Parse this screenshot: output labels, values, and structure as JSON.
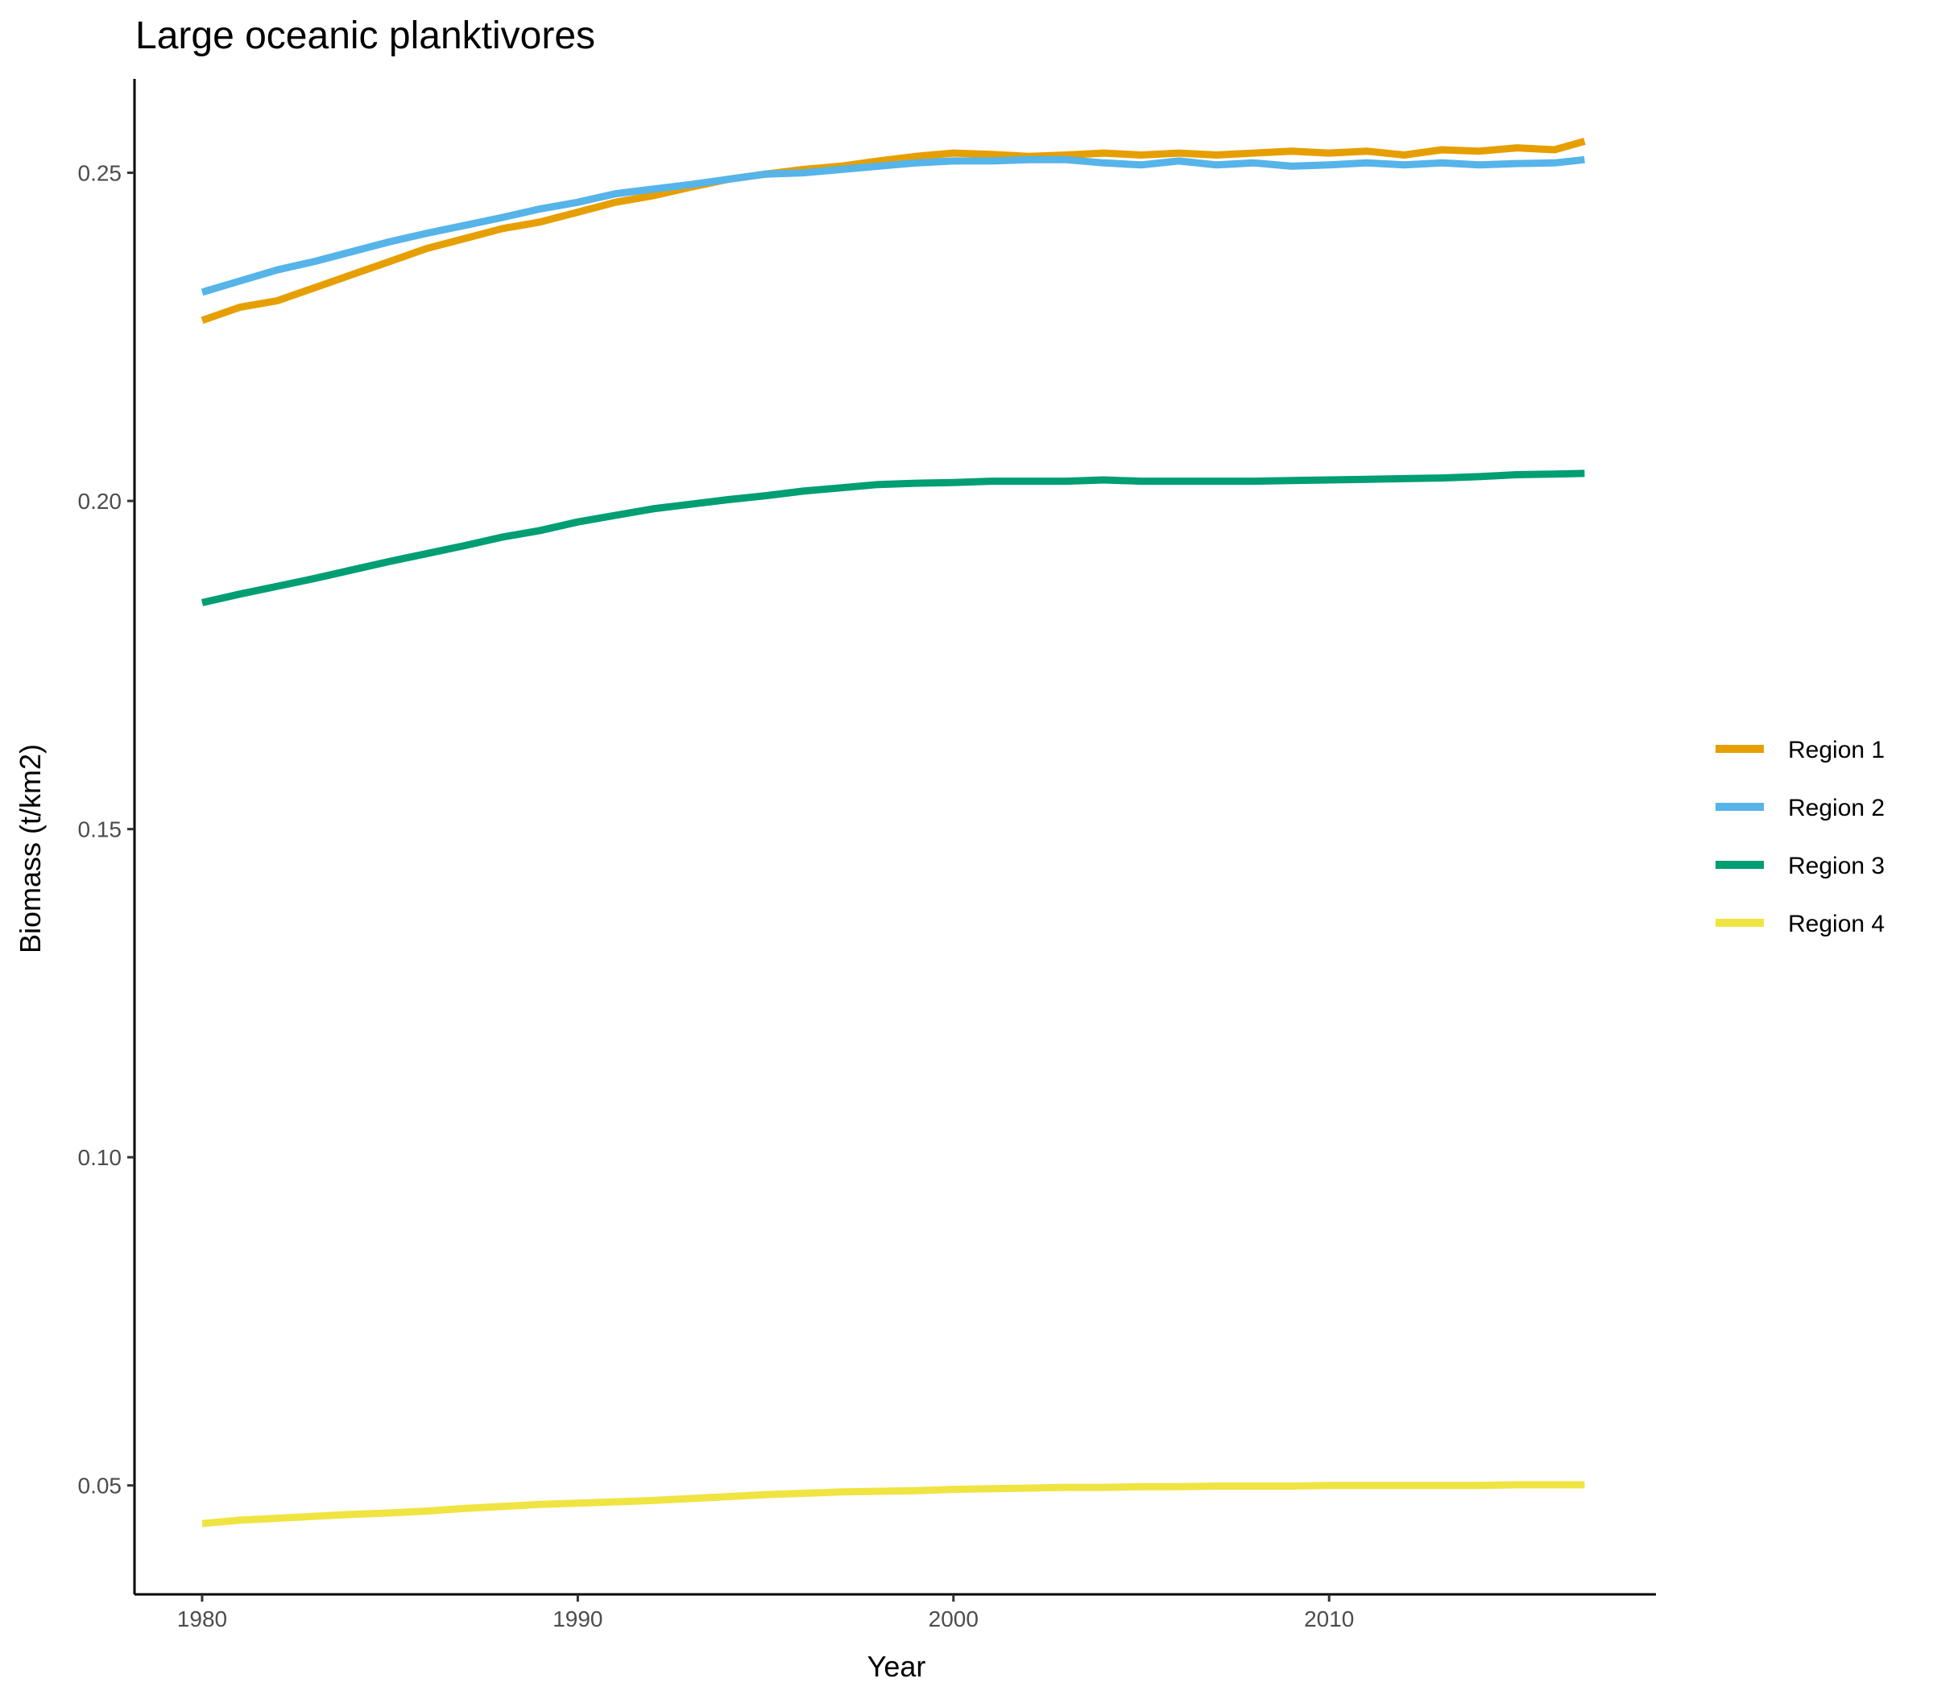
{
  "chart_data": {
    "type": "line",
    "title": "Large oceanic planktivores",
    "xlabel": "Year",
    "ylabel": "Biomass (t/km2)",
    "xlim": [
      1978.2,
      2018.7
    ],
    "ylim": [
      0.0334,
      0.2643
    ],
    "xticks": [
      1980,
      1990,
      2000,
      2010
    ],
    "xtick_labels": [
      "1980",
      "1990",
      "2000",
      "2010"
    ],
    "yticks": [
      0.05,
      0.1,
      0.15,
      0.2,
      0.25
    ],
    "ytick_labels": [
      "0.05",
      "0.10",
      "0.15",
      "0.20",
      "0.25"
    ],
    "grid": false,
    "legend_position": "right",
    "series": [
      {
        "name": "Region 1",
        "color": "#E69F00",
        "x": [
          1980,
          1981,
          1982,
          1983,
          1984,
          1985,
          1986,
          1987,
          1988,
          1989,
          1990,
          1991,
          1992,
          1993,
          1994,
          1995,
          1996,
          1997,
          1998,
          1999,
          2000,
          2001,
          2002,
          2003,
          2004,
          2005,
          2006,
          2007,
          2008,
          2009,
          2010,
          2011,
          2012,
          2013,
          2014,
          2015,
          2016,
          2016.8
        ],
        "y": [
          0.2275,
          0.2295,
          0.2305,
          0.2325,
          0.2345,
          0.2365,
          0.2385,
          0.24,
          0.2415,
          0.2425,
          0.244,
          0.2455,
          0.2465,
          0.2478,
          0.249,
          0.2498,
          0.2505,
          0.251,
          0.2518,
          0.2525,
          0.253,
          0.2528,
          0.2525,
          0.2527,
          0.253,
          0.2527,
          0.253,
          0.2527,
          0.253,
          0.2533,
          0.253,
          0.2533,
          0.2527,
          0.2535,
          0.2533,
          0.2538,
          0.2535,
          0.2548
        ]
      },
      {
        "name": "Region 2",
        "color": "#56B4E9",
        "x": [
          1980,
          1981,
          1982,
          1983,
          1984,
          1985,
          1986,
          1987,
          1988,
          1989,
          1990,
          1991,
          1992,
          1993,
          1994,
          1995,
          1996,
          1997,
          1998,
          1999,
          2000,
          2001,
          2002,
          2003,
          2004,
          2005,
          2006,
          2007,
          2008,
          2009,
          2010,
          2011,
          2012,
          2013,
          2014,
          2015,
          2016,
          2016.8
        ],
        "y": [
          0.2318,
          0.2335,
          0.2352,
          0.2365,
          0.238,
          0.2395,
          0.2408,
          0.242,
          0.2432,
          0.2445,
          0.2455,
          0.2468,
          0.2475,
          0.2482,
          0.249,
          0.2498,
          0.25,
          0.2505,
          0.251,
          0.2515,
          0.2518,
          0.2518,
          0.252,
          0.252,
          0.2515,
          0.2512,
          0.2518,
          0.2512,
          0.2515,
          0.251,
          0.2512,
          0.2515,
          0.2512,
          0.2515,
          0.2512,
          0.2514,
          0.2515,
          0.252
        ]
      },
      {
        "name": "Region 3",
        "color": "#009E73",
        "x": [
          1980,
          1981,
          1982,
          1983,
          1984,
          1985,
          1986,
          1987,
          1988,
          1989,
          1990,
          1991,
          1992,
          1993,
          1994,
          1995,
          1996,
          1997,
          1998,
          1999,
          2000,
          2001,
          2002,
          2003,
          2004,
          2005,
          2006,
          2007,
          2008,
          2009,
          2010,
          2011,
          2012,
          2013,
          2014,
          2015,
          2016,
          2016.8
        ],
        "y": [
          0.1845,
          0.1858,
          0.187,
          0.1882,
          0.1895,
          0.1908,
          0.192,
          0.1932,
          0.1945,
          0.1955,
          0.1968,
          0.1978,
          0.1988,
          0.1995,
          0.2002,
          0.2008,
          0.2015,
          0.202,
          0.2025,
          0.2027,
          0.2028,
          0.203,
          0.203,
          0.203,
          0.2032,
          0.203,
          0.203,
          0.203,
          0.203,
          0.2031,
          0.2032,
          0.2033,
          0.2034,
          0.2035,
          0.2037,
          0.204,
          0.2041,
          0.2042
        ]
      },
      {
        "name": "Region 4",
        "color": "#F0E442",
        "x": [
          1980,
          1981,
          1982,
          1983,
          1984,
          1985,
          1986,
          1987,
          1988,
          1989,
          1990,
          1991,
          1992,
          1993,
          1994,
          1995,
          1996,
          1997,
          1998,
          1999,
          2000,
          2001,
          2002,
          2003,
          2004,
          2005,
          2006,
          2007,
          2008,
          2009,
          2010,
          2011,
          2012,
          2013,
          2014,
          2015,
          2016,
          2016.8
        ],
        "y": [
          0.0442,
          0.0447,
          0.045,
          0.0453,
          0.0456,
          0.0458,
          0.0461,
          0.0465,
          0.0468,
          0.0471,
          0.0473,
          0.0475,
          0.0477,
          0.048,
          0.0483,
          0.0486,
          0.0488,
          0.049,
          0.0491,
          0.0492,
          0.0494,
          0.0495,
          0.0496,
          0.0497,
          0.0497,
          0.0498,
          0.0498,
          0.0499,
          0.0499,
          0.0499,
          0.05,
          0.05,
          0.05,
          0.05,
          0.05,
          0.0501,
          0.0501,
          0.0501
        ]
      }
    ]
  }
}
